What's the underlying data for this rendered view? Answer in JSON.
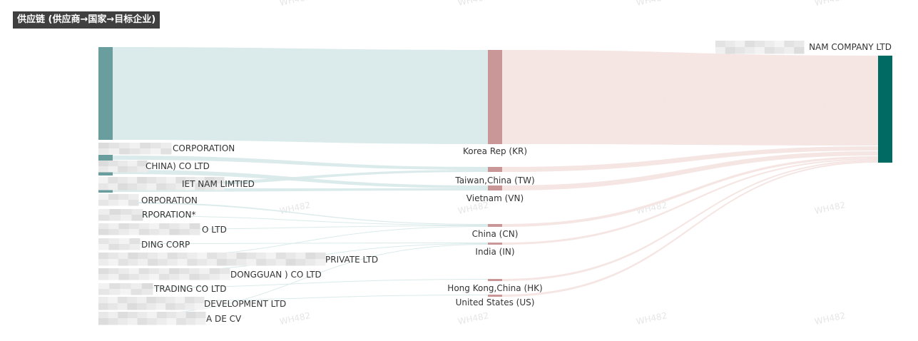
{
  "title": "供应链 (供应商→国家→目标企业)",
  "chart_data": {
    "type": "sankey",
    "title": "供应链 (供应商→国家→目标企业)",
    "columns": [
      "supplier",
      "country",
      "target"
    ],
    "suppliers": [
      {
        "label": "CORPORATION"
      },
      {
        "label": "CHINA) CO LTD"
      },
      {
        "label": "IET NAM LIMTIED"
      },
      {
        "label": "ORPORATION"
      },
      {
        "label": "RPORATION*"
      },
      {
        "label": "O LTD"
      },
      {
        "label": "DING CORP"
      },
      {
        "label": "PRIVATE LTD"
      },
      {
        "label": "DONGGUAN ) CO LTD"
      },
      {
        "label": "TRADING CO LTD"
      },
      {
        "label": "DEVELOPMENT LTD"
      },
      {
        "label": "A DE CV"
      }
    ],
    "countries": [
      {
        "label": "Korea Rep (KR)"
      },
      {
        "label": "Taiwan,China (TW)"
      },
      {
        "label": "Vietnam (VN)"
      },
      {
        "label": "China (CN)"
      },
      {
        "label": "India (IN)"
      },
      {
        "label": "Hong Kong,China (HK)"
      },
      {
        "label": "United States (US)"
      }
    ],
    "target": {
      "label": "NAM COMPANY LTD"
    },
    "colors": {
      "supplier_node": "#6a9e9e",
      "country_node": "#c99797",
      "target_node": "#006a63",
      "link_left": "#d9e9e9",
      "link_right": "#f4e4e2"
    }
  },
  "watermark": "WH482"
}
